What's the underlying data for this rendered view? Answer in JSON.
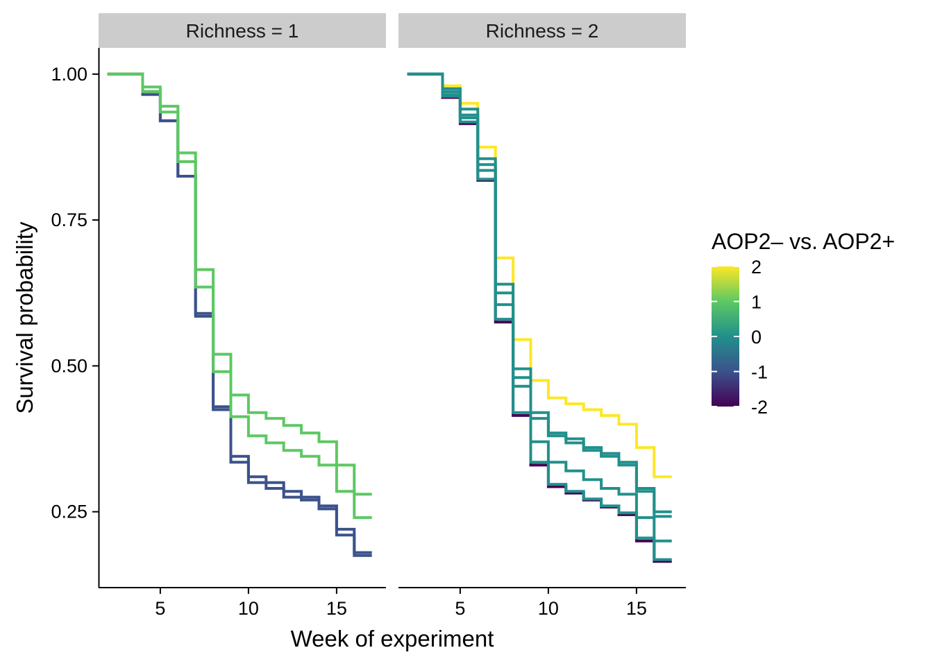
{
  "chart_data": {
    "type": "line",
    "step": true,
    "xlabel": "Week of experiment",
    "ylabel": "Survival probability",
    "xlim": [
      1.5,
      17.8
    ],
    "ylim": [
      0.12,
      1.045
    ],
    "xticks": [
      5,
      10,
      15
    ],
    "yticks": [
      1.0,
      0.75,
      0.5,
      0.25
    ],
    "ytick_labels": [
      "1.00",
      "0.75",
      "0.50",
      "0.25"
    ],
    "grid": false,
    "legend": {
      "title": "AOP2– vs. AOP2+",
      "position": "right",
      "type": "colorbar",
      "range": [
        -2,
        2
      ],
      "ticks": [
        2,
        1,
        0,
        -1,
        -2
      ],
      "tick_labels": [
        "2",
        "1",
        "0",
        "-1",
        "-2"
      ]
    },
    "panels": [
      {
        "strip": "Richness = 1",
        "series": [
          {
            "value": -1,
            "x": [
              2,
              3,
              4,
              5,
              6,
              7,
              8,
              9,
              10,
              11,
              12,
              13,
              14,
              15,
              16,
              17
            ],
            "y": [
              1.0,
              1.0,
              0.965,
              0.92,
              0.825,
              0.585,
              0.43,
              0.345,
              0.31,
              0.3,
              0.285,
              0.275,
              0.26,
              0.22,
              0.18,
              0.18
            ]
          },
          {
            "value": -1,
            "x": [
              2,
              3,
              4,
              5,
              6,
              7,
              8,
              9,
              10,
              11,
              12,
              13,
              14,
              15,
              16,
              17
            ],
            "y": [
              1.0,
              1.0,
              0.97,
              0.92,
              0.825,
              0.59,
              0.425,
              0.335,
              0.3,
              0.29,
              0.275,
              0.27,
              0.255,
              0.21,
              0.175,
              0.175
            ]
          },
          {
            "value": 1,
            "x": [
              2,
              3,
              4,
              5,
              6,
              7,
              8,
              9,
              10,
              11,
              12,
              13,
              14,
              15,
              16,
              17
            ],
            "y": [
              1.0,
              1.0,
              0.978,
              0.945,
              0.865,
              0.665,
              0.52,
              0.45,
              0.42,
              0.41,
              0.398,
              0.385,
              0.37,
              0.33,
              0.28,
              0.28
            ]
          },
          {
            "value": 1,
            "x": [
              2,
              3,
              4,
              5,
              6,
              7,
              8,
              9,
              10,
              11,
              12,
              13,
              14,
              15,
              16,
              17
            ],
            "y": [
              1.0,
              1.0,
              0.97,
              0.935,
              0.85,
              0.635,
              0.49,
              0.413,
              0.38,
              0.368,
              0.355,
              0.345,
              0.33,
              0.285,
              0.24,
              0.24
            ]
          }
        ]
      },
      {
        "strip": "Richness = 2",
        "series": [
          {
            "value": 2,
            "x": [
              2,
              3,
              4,
              5,
              6,
              7,
              8,
              9,
              10,
              11,
              12,
              13,
              14,
              15,
              16,
              17
            ],
            "y": [
              1.0,
              1.0,
              0.98,
              0.95,
              0.875,
              0.685,
              0.545,
              0.475,
              0.445,
              0.435,
              0.425,
              0.415,
              0.4,
              0.36,
              0.31,
              0.31
            ]
          },
          {
            "value": -2,
            "x": [
              2,
              3,
              4,
              5,
              6,
              7,
              8,
              9,
              10,
              11,
              12,
              13,
              14,
              15,
              16,
              17
            ],
            "y": [
              1.0,
              1.0,
              0.96,
              0.915,
              0.818,
              0.575,
              0.415,
              0.33,
              0.293,
              0.282,
              0.27,
              0.258,
              0.245,
              0.2,
              0.165,
              0.165
            ]
          },
          {
            "value": 0,
            "x": [
              2,
              3,
              4,
              5,
              6,
              7,
              8,
              9,
              10,
              11,
              12,
              13,
              14,
              15,
              16,
              17
            ],
            "y": [
              1.0,
              1.0,
              0.975,
              0.94,
              0.855,
              0.64,
              0.495,
              0.42,
              0.385,
              0.375,
              0.36,
              0.35,
              0.335,
              0.29,
              0.25,
              0.25
            ]
          },
          {
            "value": 0,
            "x": [
              2,
              3,
              4,
              5,
              6,
              7,
              8,
              9,
              10,
              11,
              12,
              13,
              14,
              15,
              16,
              17
            ],
            "y": [
              1.0,
              1.0,
              0.97,
              0.93,
              0.845,
              0.625,
              0.48,
              0.41,
              0.38,
              0.368,
              0.355,
              0.345,
              0.33,
              0.285,
              0.242,
              0.242
            ]
          },
          {
            "value": 0,
            "x": [
              2,
              3,
              4,
              5,
              6,
              7,
              8,
              9,
              10,
              11,
              12,
              13,
              14,
              15,
              16,
              17
            ],
            "y": [
              1.0,
              1.0,
              0.965,
              0.925,
              0.835,
              0.605,
              0.465,
              0.37,
              0.335,
              0.32,
              0.305,
              0.29,
              0.28,
              0.24,
              0.2,
              0.2
            ]
          },
          {
            "value": 0,
            "x": [
              2,
              3,
              4,
              5,
              6,
              7,
              8,
              9,
              10,
              11,
              12,
              13,
              14,
              15,
              16,
              17
            ],
            "y": [
              1.0,
              1.0,
              0.962,
              0.918,
              0.82,
              0.58,
              0.42,
              0.335,
              0.297,
              0.285,
              0.272,
              0.26,
              0.248,
              0.205,
              0.168,
              0.168
            ]
          }
        ]
      }
    ],
    "colors": {
      "viridis": [
        "#440154",
        "#3b528b",
        "#21908c",
        "#5dc863",
        "#fde725"
      ]
    }
  }
}
